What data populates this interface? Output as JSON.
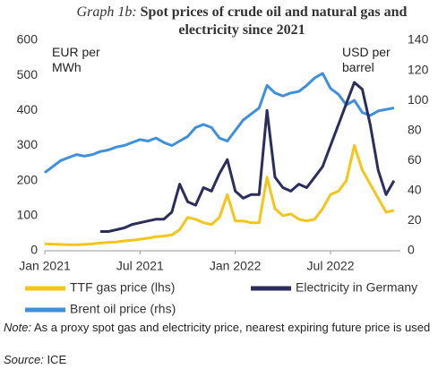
{
  "chart_data": {
    "type": "line",
    "title_label": "Graph 1b:",
    "title": "Spot prices of crude oil and natural gas and electricity since 2021",
    "y_label": "EUR per MWh",
    "y2_label": "USD per barrel",
    "x": [
      0,
      0.5,
      1,
      1.5,
      2,
      2.5,
      3,
      3.5,
      4,
      4.5,
      5,
      5.5,
      6,
      6.5,
      7,
      7.5,
      8,
      8.5,
      9,
      9.5,
      10,
      10.5,
      11,
      11.5,
      12,
      12.5,
      13,
      13.5,
      14,
      14.5,
      15,
      15.5,
      16,
      16.5,
      17,
      17.5,
      18,
      18.5,
      19,
      19.5,
      20,
      20.5,
      21,
      21.5,
      22
    ],
    "xlim": [
      0,
      22.4
    ],
    "xticks": [
      {
        "value": 0,
        "label": "Jan 2021"
      },
      {
        "value": 6,
        "label": "Jul 2021"
      },
      {
        "value": 12,
        "label": "Jan 2022"
      },
      {
        "value": 18,
        "label": "Jul 2022"
      }
    ],
    "ylim": [
      0,
      600
    ],
    "yticks": [
      0,
      100,
      200,
      300,
      400,
      500,
      600
    ],
    "y2lim": [
      0,
      140
    ],
    "y2ticks": [
      0,
      20,
      40,
      60,
      80,
      100,
      120,
      140
    ],
    "grid": false,
    "series": [
      {
        "name": "TTF gas price (lhs)",
        "color": "#f5c518",
        "values": [
          20,
          19,
          18,
          17,
          17,
          18,
          20,
          22,
          24,
          25,
          28,
          30,
          33,
          36,
          40,
          42,
          45,
          60,
          95,
          90,
          80,
          75,
          95,
          160,
          85,
          85,
          80,
          80,
          210,
          120,
          100,
          105,
          90,
          85,
          90,
          120,
          160,
          170,
          200,
          300,
          230,
          190,
          150,
          110,
          115
        ]
      },
      {
        "name": "Electricity in Germany",
        "color": "#2b2d5c",
        "values": [
          null,
          null,
          null,
          null,
          null,
          null,
          null,
          55,
          55,
          60,
          65,
          75,
          80,
          85,
          90,
          90,
          110,
          190,
          140,
          130,
          180,
          170,
          220,
          260,
          170,
          150,
          160,
          160,
          400,
          210,
          180,
          170,
          190,
          180,
          210,
          240,
          300,
          360,
          420,
          480,
          460,
          360,
          230,
          160,
          200
        ]
      },
      {
        "name": "Brent oil price (rhs)",
        "color": "#3d8fe0",
        "axis": "y2",
        "values": [
          52,
          56,
          60,
          62,
          64,
          63,
          64,
          66,
          67,
          69,
          70,
          72,
          74,
          73,
          75,
          72,
          70,
          73,
          76,
          82,
          84,
          82,
          75,
          73,
          80,
          87,
          91,
          95,
          110,
          105,
          103,
          105,
          106,
          110,
          115,
          118,
          108,
          104,
          97,
          100,
          92,
          90,
          93,
          94,
          95
        ]
      }
    ],
    "note_label": "Note:",
    "note": "As a proxy spot gas and electricity price, nearest expiring future price is used",
    "source_label": "Source:",
    "source": "ICE"
  }
}
